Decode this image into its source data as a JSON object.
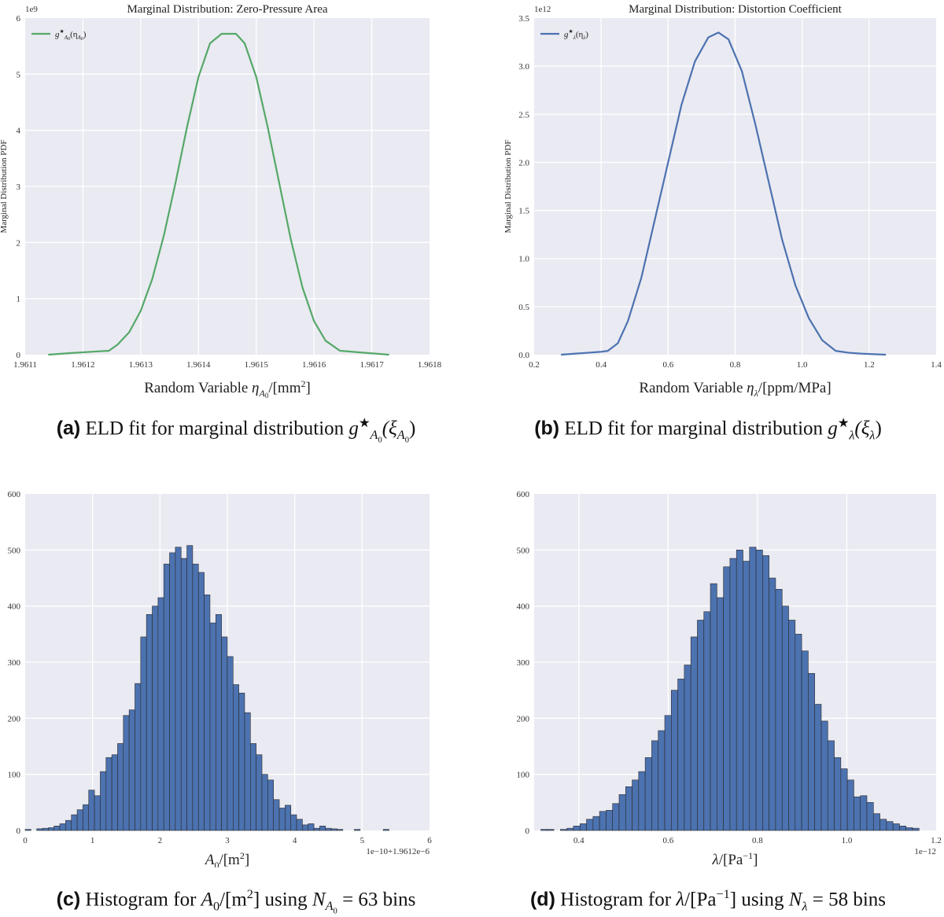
{
  "chart_data": [
    {
      "id": "a",
      "type": "line",
      "title": "Marginal Distribution: Zero-Pressure Area",
      "ylabel": "Marginal Distribution PDF",
      "xlabel_text": "Random Variable η",
      "xlabel_sub": "A",
      "xlabel_subsub": "0",
      "xlabel_unit": "/[mm",
      "xlabel_unit_sup": "2",
      "xlabel_unit_end": "]",
      "offset_text": "1e9",
      "xlim": [
        1.9611,
        1.9618
      ],
      "ylim": [
        0,
        6
      ],
      "xticks": [
        1.9611,
        1.9612,
        1.9613,
        1.9614,
        1.9615,
        1.9616,
        1.9617,
        1.9618
      ],
      "xtick_labels": [
        "1.9611",
        "1.9612",
        "1.9613",
        "1.9614",
        "1.9615",
        "1.9616",
        "1.9617",
        "1.9618"
      ],
      "yticks": [
        0,
        1,
        2,
        3,
        4,
        5,
        6
      ],
      "ytick_labels": [
        "0",
        "1",
        "2",
        "3",
        "4",
        "5",
        "6"
      ],
      "legend": "g*A0(ηA0)",
      "legend_main": "g",
      "legend_star": "★",
      "legend_sub": "A",
      "legend_subsub": "0",
      "legend_arg": "(η",
      "legend_arg_sub": "A",
      "legend_arg_subsub": "0",
      "legend_arg_end": ")",
      "legend_position": "top-left",
      "line_color": "#55a868",
      "series": [
        {
          "x": [
            1.96114,
            1.96118,
            1.96122,
            1.961245,
            1.96126,
            1.96128,
            1.9613,
            1.96132,
            1.96134,
            1.96136,
            1.96138,
            1.9614,
            1.96142,
            1.96144,
            1.96146,
            1.961465,
            1.96148,
            1.9615,
            1.96152,
            1.96154,
            1.96156,
            1.96158,
            1.9616,
            1.96162,
            1.961645,
            1.96168,
            1.96173
          ],
          "y": [
            0.0,
            0.03,
            0.055,
            0.07,
            0.18,
            0.4,
            0.78,
            1.35,
            2.12,
            3.05,
            4.05,
            4.95,
            5.55,
            5.72,
            5.72,
            5.72,
            5.55,
            4.95,
            4.05,
            3.05,
            2.05,
            1.2,
            0.6,
            0.25,
            0.07,
            0.04,
            0.0
          ]
        }
      ],
      "caption_label": "(a)",
      "caption_text": " ELD fit for marginal distribution ",
      "caption_math": "g",
      "caption_star": "★",
      "caption_sub": "A",
      "caption_subsub": "0",
      "caption_arg": "(ξ",
      "caption_arg_sub": "A",
      "caption_arg_subsub": "0",
      "caption_arg_end": ")"
    },
    {
      "id": "b",
      "type": "line",
      "title": "Marginal Distribution: Distortion Coefficient",
      "ylabel": "Marginal Distribution PDF",
      "xlabel_text": "Random Variable η",
      "xlabel_sub": "λ",
      "xlabel_unit": "/[ppm/MPa]",
      "offset_text": "1e12",
      "xlim": [
        0.2,
        1.4
      ],
      "ylim": [
        0,
        3.5
      ],
      "xticks": [
        0.2,
        0.4,
        0.6,
        0.8,
        1.0,
        1.2,
        1.4
      ],
      "xtick_labels": [
        "0.2",
        "0.4",
        "0.6",
        "0.8",
        "1.0",
        "1.2",
        "1.4"
      ],
      "yticks": [
        0,
        0.5,
        1.0,
        1.5,
        2.0,
        2.5,
        3.0,
        3.5
      ],
      "ytick_labels": [
        "0.0",
        "0.5",
        "1.0",
        "1.5",
        "2.0",
        "2.5",
        "3.0",
        "3.5"
      ],
      "legend": "g*λ(ηλ)",
      "legend_main": "g",
      "legend_star": "★",
      "legend_sub": "λ",
      "legend_arg": "(η",
      "legend_arg_sub": "λ",
      "legend_arg_end": ")",
      "legend_position": "top-left",
      "line_color": "#4c72b0",
      "series": [
        {
          "x": [
            0.28,
            0.32,
            0.36,
            0.4,
            0.42,
            0.45,
            0.48,
            0.52,
            0.56,
            0.6,
            0.64,
            0.68,
            0.72,
            0.75,
            0.78,
            0.82,
            0.86,
            0.9,
            0.94,
            0.98,
            1.02,
            1.06,
            1.1,
            1.14,
            1.18,
            1.25
          ],
          "y": [
            0.0,
            0.01,
            0.02,
            0.03,
            0.04,
            0.12,
            0.35,
            0.8,
            1.4,
            2.0,
            2.6,
            3.05,
            3.3,
            3.35,
            3.28,
            2.95,
            2.4,
            1.8,
            1.2,
            0.72,
            0.38,
            0.15,
            0.04,
            0.02,
            0.01,
            0.0
          ]
        }
      ],
      "caption_label": "(b)",
      "caption_text": " ELD fit for marginal distribution ",
      "caption_math": "g",
      "caption_star": "★",
      "caption_sub": "λ",
      "caption_arg": "(ξ",
      "caption_arg_sub": "λ",
      "caption_arg_end": ")"
    },
    {
      "id": "c",
      "type": "bar",
      "title": "",
      "xlabel_text": "A",
      "xlabel_sub": "0",
      "xlabel_unit": "/[m",
      "xlabel_unit_sup": "2",
      "xlabel_unit_end": "]",
      "offset_text": "1e−10+1.9612e−6",
      "xlim": [
        0,
        6
      ],
      "ylim": [
        0,
        600
      ],
      "xticks": [
        0,
        1,
        2,
        3,
        4,
        5,
        6
      ],
      "xtick_labels": [
        "0",
        "1",
        "2",
        "3",
        "4",
        "5",
        "6"
      ],
      "yticks": [
        0,
        100,
        200,
        300,
        400,
        500,
        600
      ],
      "ytick_labels": [
        "0",
        "100",
        "200",
        "300",
        "400",
        "500",
        "600"
      ],
      "bar_color": "#4c72b0",
      "bins": {
        "start": 0.0,
        "width": 0.0857,
        "counts": [
          2,
          0,
          3,
          4,
          5,
          8,
          12,
          18,
          28,
          37,
          46,
          72,
          62,
          105,
          130,
          135,
          155,
          205,
          215,
          262,
          345,
          385,
          400,
          415,
          475,
          495,
          505,
          485,
          508,
          475,
          460,
          420,
          370,
          385,
          345,
          310,
          260,
          245,
          210,
          155,
          135,
          100,
          90,
          55,
          40,
          45,
          28,
          20,
          10,
          12,
          4,
          8,
          4,
          3,
          2,
          0,
          0,
          2,
          0,
          0,
          0,
          0,
          2
        ]
      },
      "caption_label": "(c)",
      "caption_text": " Histogram for ",
      "caption_math": "A",
      "caption_sub": "0",
      "caption_unit": "/[m",
      "caption_unit_sup": "2",
      "caption_unit_end": "]",
      "caption_text2": " using ",
      "caption_n": "N",
      "caption_n_sub": "A",
      "caption_n_subsub": "0",
      "caption_eq": " = 63 bins"
    },
    {
      "id": "d",
      "type": "bar",
      "title": "",
      "xlabel_text": "λ",
      "xlabel_unit": "/[Pa",
      "xlabel_unit_sup": "−1",
      "xlabel_unit_end": "]",
      "offset_text": "1e−12",
      "xlim": [
        0.3,
        1.2
      ],
      "ylim": [
        0,
        600
      ],
      "xticks": [
        0.4,
        0.6,
        0.8,
        1.0,
        1.2
      ],
      "xtick_labels": [
        "0.4",
        "0.6",
        "0.8",
        "1.0",
        "1.2"
      ],
      "yticks": [
        0,
        100,
        200,
        300,
        400,
        500,
        600
      ],
      "ytick_labels": [
        "0",
        "100",
        "200",
        "300",
        "400",
        "500",
        "600"
      ],
      "bar_color": "#4c72b0",
      "bins": {
        "start": 0.315,
        "width": 0.0146,
        "counts": [
          2,
          2,
          0,
          2,
          4,
          8,
          12,
          20,
          25,
          34,
          36,
          48,
          64,
          78,
          90,
          105,
          130,
          160,
          178,
          205,
          250,
          270,
          295,
          345,
          375,
          390,
          440,
          415,
          470,
          485,
          500,
          480,
          505,
          500,
          490,
          450,
          430,
          400,
          375,
          350,
          320,
          280,
          225,
          195,
          160,
          130,
          110,
          90,
          60,
          62,
          50,
          30,
          20,
          16,
          12,
          8,
          5,
          4
        ]
      },
      "caption_label": "(d)",
      "caption_text": " Histogram for ",
      "caption_math": "λ",
      "caption_unit": "/[Pa",
      "caption_unit_sup": "−1",
      "caption_unit_end": "]",
      "caption_text2": " using ",
      "caption_n": "N",
      "caption_n_sub": "λ",
      "caption_eq": " = 58 bins"
    }
  ]
}
